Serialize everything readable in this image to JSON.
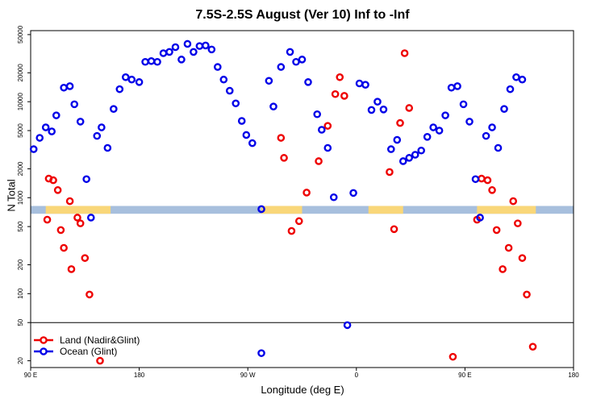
{
  "chart_data": {
    "type": "scatter",
    "title": "7.5S-2.5S August (Ver 10)   Inf to -Inf",
    "xlabel": "Longitude (deg E)",
    "ylabel": "N Total",
    "xlim": [
      90,
      450
    ],
    "ylim": [
      17,
      55000
    ],
    "y_scale": "log",
    "break_value": 50,
    "x_ticks": [
      {
        "value": 90,
        "label": "90 E"
      },
      {
        "value": 162,
        "label": "180"
      },
      {
        "value": 234,
        "label": "90 W"
      },
      {
        "value": 306,
        "label": "0"
      },
      {
        "value": 378,
        "label": "90 E"
      },
      {
        "value": 450,
        "label": "180"
      }
    ],
    "y_ticks": [
      {
        "value": 20,
        "label": "20"
      },
      {
        "value": 50,
        "label": "50"
      },
      {
        "value": 100,
        "label": "100"
      },
      {
        "value": 200,
        "label": "200"
      },
      {
        "value": 500,
        "label": "500"
      },
      {
        "value": 1000,
        "label": "1000"
      },
      {
        "value": 2000,
        "label": "2000"
      },
      {
        "value": 5000,
        "label": "5000"
      },
      {
        "value": 10000,
        "label": "10000"
      },
      {
        "value": 20000,
        "label": "20000"
      },
      {
        "value": 50000,
        "label": "50000"
      }
    ],
    "band": {
      "y_low": 680,
      "y_high": 820,
      "color": "#a7bfdd",
      "land_color": "#f9d779",
      "land_segments": [
        [
          100,
          143
        ],
        [
          243,
          270
        ],
        [
          314,
          337
        ],
        [
          386,
          425
        ]
      ]
    },
    "legend_position": "bottom-left",
    "series": [
      {
        "name": "Land (Nadir&Glint)",
        "color": "#ee0000",
        "points": [
          [
            102,
            1580
          ],
          [
            105,
            1520
          ],
          [
            108,
            1200
          ],
          [
            101,
            590
          ],
          [
            110,
            460
          ],
          [
            117,
            180
          ],
          [
            112,
            300
          ],
          [
            116,
            920
          ],
          [
            123,
            540
          ],
          [
            126,
            235
          ],
          [
            129,
            98
          ],
          [
            121,
            620
          ],
          [
            136,
            20
          ],
          [
            256,
            4200
          ],
          [
            258,
            2600
          ],
          [
            263,
            450
          ],
          [
            268,
            570
          ],
          [
            273,
            1130
          ],
          [
            281,
            2400
          ],
          [
            287,
            5600
          ],
          [
            292,
            12000
          ],
          [
            295,
            18000
          ],
          [
            298,
            11500
          ],
          [
            328,
            1850
          ],
          [
            331,
            470
          ],
          [
            335,
            6000
          ],
          [
            338,
            32000
          ],
          [
            341,
            8600
          ],
          [
            370,
            22
          ],
          [
            386,
            590
          ],
          [
            389,
            1580
          ],
          [
            393,
            1520
          ],
          [
            396,
            1200
          ],
          [
            399,
            460
          ],
          [
            403,
            180
          ],
          [
            407,
            300
          ],
          [
            410,
            920
          ],
          [
            413,
            540
          ],
          [
            416,
            235
          ],
          [
            419,
            98
          ],
          [
            423,
            28
          ]
        ]
      },
      {
        "name": "Ocean (Glint)",
        "color": "#0000e8",
        "points": [
          [
            92,
            3200
          ],
          [
            96,
            4200
          ],
          [
            100,
            5400
          ],
          [
            104,
            4900
          ],
          [
            107,
            7200
          ],
          [
            112,
            14000
          ],
          [
            116,
            14500
          ],
          [
            119,
            9400
          ],
          [
            123,
            6200
          ],
          [
            127,
            1560
          ],
          [
            130,
            620
          ],
          [
            134,
            4400
          ],
          [
            137,
            5400
          ],
          [
            141,
            3300
          ],
          [
            145,
            8400
          ],
          [
            149,
            13500
          ],
          [
            153,
            18000
          ],
          [
            157,
            17000
          ],
          [
            162,
            16000
          ],
          [
            166,
            26000
          ],
          [
            170,
            26500
          ],
          [
            174,
            26000
          ],
          [
            178,
            32000
          ],
          [
            182,
            33000
          ],
          [
            186,
            37000
          ],
          [
            190,
            27500
          ],
          [
            194,
            40000
          ],
          [
            198,
            33000
          ],
          [
            202,
            38000
          ],
          [
            206,
            38500
          ],
          [
            210,
            35000
          ],
          [
            214,
            23000
          ],
          [
            218,
            17000
          ],
          [
            222,
            13000
          ],
          [
            226,
            9600
          ],
          [
            230,
            6300
          ],
          [
            233,
            4500
          ],
          [
            237,
            3700
          ],
          [
            243,
            760
          ],
          [
            248,
            16500
          ],
          [
            251,
            8900
          ],
          [
            256,
            23000
          ],
          [
            262,
            33000
          ],
          [
            266,
            26000
          ],
          [
            270,
            27500
          ],
          [
            274,
            16000
          ],
          [
            280,
            7400
          ],
          [
            283,
            5100
          ],
          [
            287,
            3300
          ],
          [
            291,
            1010
          ],
          [
            300,
            47
          ],
          [
            304,
            1120
          ],
          [
            308,
            15500
          ],
          [
            312,
            15000
          ],
          [
            316,
            8200
          ],
          [
            320,
            10000
          ],
          [
            324,
            8300
          ],
          [
            329,
            3200
          ],
          [
            333,
            4000
          ],
          [
            337,
            2400
          ],
          [
            341,
            2600
          ],
          [
            345,
            2800
          ],
          [
            349,
            3100
          ],
          [
            353,
            4300
          ],
          [
            357,
            5400
          ],
          [
            361,
            5000
          ],
          [
            365,
            7200
          ],
          [
            369,
            14000
          ],
          [
            373,
            14500
          ],
          [
            377,
            9400
          ],
          [
            381,
            6200
          ],
          [
            385,
            1560
          ],
          [
            388,
            620
          ],
          [
            392,
            4400
          ],
          [
            396,
            5400
          ],
          [
            400,
            3300
          ],
          [
            404,
            8400
          ],
          [
            408,
            13500
          ],
          [
            412,
            18000
          ],
          [
            416,
            17000
          ],
          [
            243,
            24
          ]
        ]
      }
    ]
  }
}
